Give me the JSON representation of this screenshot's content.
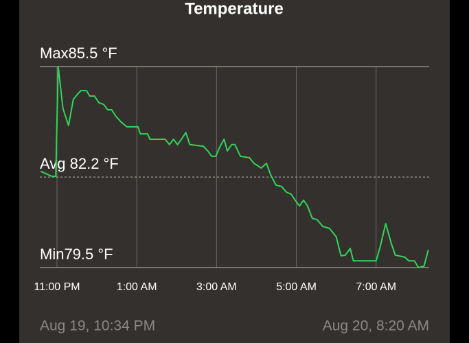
{
  "chart_data": {
    "type": "line",
    "title": "Temperature",
    "start_label": "Aug 19, 10:34 PM",
    "end_label": "Aug 20, 8:20 AM",
    "xlim": [
      22.57,
      32.33
    ],
    "ylim": [
      79.5,
      85.5
    ],
    "xticks": [
      {
        "value": 23,
        "label": "11:00 PM"
      },
      {
        "value": 25,
        "label": "1:00 AM"
      },
      {
        "value": 27,
        "label": "3:00 AM"
      },
      {
        "value": 29,
        "label": "5:00 AM"
      },
      {
        "value": 31,
        "label": "7:00 AM"
      }
    ],
    "grid": true,
    "reference_lines": [
      {
        "label": "Max85.5 °F",
        "value": 85.5,
        "style": "solid"
      },
      {
        "label": "Avg 82.2 °F",
        "value": 82.2,
        "style": "dashed"
      },
      {
        "label": "Min79.5 °F",
        "value": 79.5,
        "style": "solid"
      }
    ],
    "series": [
      {
        "color": "#33d45a",
        "x": [
          22.59,
          22.88,
          22.97,
          23.03,
          23.15,
          23.29,
          23.41,
          23.52,
          23.6,
          23.74,
          23.82,
          23.94,
          24.05,
          24.17,
          24.27,
          24.37,
          24.48,
          24.61,
          24.75,
          25.03,
          25.09,
          25.27,
          25.33,
          25.71,
          25.82,
          25.92,
          26.02,
          26.12,
          26.23,
          26.33,
          26.67,
          26.78,
          26.88,
          26.98,
          27.09,
          27.19,
          27.27,
          27.38,
          27.46,
          27.6,
          27.82,
          27.94,
          28.12,
          28.25,
          28.36,
          28.49,
          28.63,
          28.75,
          28.87,
          28.97,
          29.08,
          29.18,
          29.28,
          29.4,
          29.52,
          29.66,
          29.83,
          30.0,
          30.12,
          30.23,
          30.35,
          30.43,
          31.0,
          31.1,
          31.24,
          31.38,
          31.48,
          31.72,
          31.82,
          31.96,
          32.06,
          32.2,
          32.31
        ],
        "values": [
          82.37,
          82.22,
          82.22,
          85.5,
          84.25,
          83.74,
          84.52,
          84.68,
          84.78,
          84.78,
          84.62,
          84.62,
          84.42,
          84.37,
          84.21,
          84.21,
          84.01,
          83.84,
          83.7,
          83.7,
          83.49,
          83.49,
          83.33,
          83.33,
          83.17,
          83.33,
          83.17,
          83.33,
          83.53,
          83.17,
          83.12,
          82.98,
          82.82,
          82.82,
          83.12,
          83.33,
          82.98,
          83.17,
          83.17,
          82.82,
          82.78,
          82.61,
          82.47,
          82.61,
          82.26,
          81.96,
          81.92,
          81.75,
          81.69,
          81.51,
          81.34,
          81.51,
          81.34,
          80.97,
          80.93,
          80.73,
          80.67,
          80.42,
          79.85,
          79.87,
          80.07,
          79.7,
          79.7,
          80.11,
          80.81,
          80.22,
          79.87,
          79.81,
          79.7,
          79.7,
          79.5,
          79.54,
          80.03
        ]
      }
    ]
  }
}
